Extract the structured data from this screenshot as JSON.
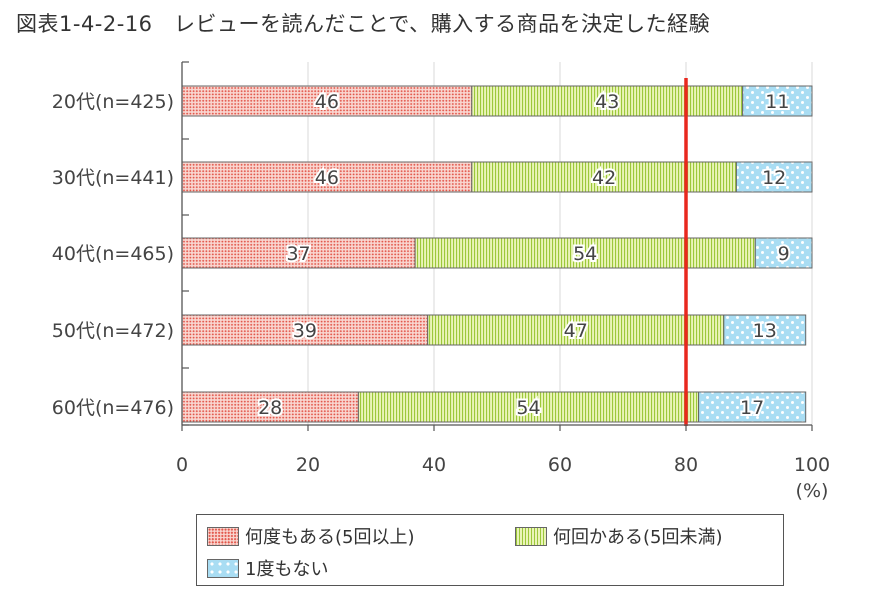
{
  "title": "図表1-4-2-16　レビューを読んだことで、購入する商品を決定した経験",
  "chart_data": {
    "type": "bar",
    "orientation": "horizontal",
    "stacked": true,
    "categories": [
      "20代(n=425)",
      "30代(n=441)",
      "40代(n=465)",
      "50代(n=472)",
      "60代(n=476)"
    ],
    "series": [
      {
        "name": "何度もある(5回以上)",
        "values": [
          46,
          46,
          37,
          39,
          28
        ],
        "color": "#e2564a"
      },
      {
        "name": "何回かある(5回未満)",
        "values": [
          43,
          42,
          54,
          47,
          54
        ],
        "color": "#9cc83a"
      },
      {
        "name": "1度もない",
        "values": [
          11,
          12,
          9,
          13,
          17
        ],
        "color": "#5bbde6"
      }
    ],
    "xlim": [
      0,
      100
    ],
    "xticks": [
      "0",
      "20",
      "40",
      "60",
      "80",
      "100"
    ],
    "xunit": "(%)",
    "reference_line": {
      "value": 80,
      "color": "#e8281e"
    },
    "legend_position": "bottom"
  }
}
